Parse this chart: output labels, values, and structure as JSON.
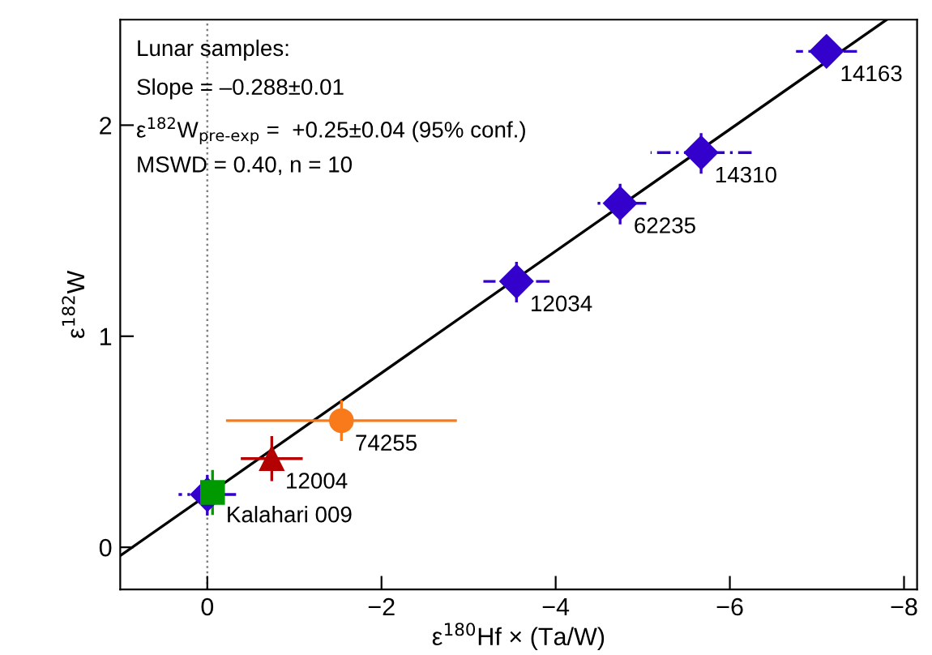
{
  "chart_data": {
    "type": "scatter",
    "xlabel": "ε$^{180}$Hf × (Ta/W)",
    "ylabel": "ε$^{182}$W",
    "xlim": [
      1,
      -8.15
    ],
    "ylim": [
      -0.2,
      2.5
    ],
    "xticks": [
      0,
      {
        "value": -2,
        "label": "−2"
      },
      {
        "value": -4,
        "label": "−4"
      },
      {
        "value": -6,
        "label": "−6"
      },
      {
        "value": -8,
        "label": "−8"
      }
    ],
    "yticks": [
      0,
      1,
      2
    ],
    "grid": false,
    "legend": false,
    "series": [
      {
        "type": "line",
        "color": "#000000",
        "x": [
          1,
          -7.8
        ],
        "values": [
          -0.04,
          2.5
        ],
        "marker": "none",
        "line_style": "solid"
      },
      {
        "color": "#3300cc",
        "marker": "diamond",
        "line_style": "dashed",
        "x": [
          0.0,
          -3.55,
          -4.74,
          -5.67,
          -7.11
        ],
        "values": [
          0.25,
          1.26,
          1.63,
          1.87,
          2.35
        ],
        "errors": [
          0.1,
          0.1,
          0.1,
          0.1,
          null
        ],
        "xerrors": [
          0.33,
          0.38,
          0.3,
          0.58,
          0.35
        ]
      },
      {
        "color": "#f97a1a",
        "marker": "circle",
        "line_style": "solid",
        "x": [
          -1.54
        ],
        "values": [
          0.6
        ],
        "errors": [
          0.09
        ],
        "xerrors": [
          1.31
        ]
      },
      {
        "color": "#b30000",
        "marker": "triangle",
        "line_style": "solid",
        "x": [
          -0.74
        ],
        "values": [
          0.42
        ],
        "errors": [
          0.1
        ],
        "xerrors": [
          0.34
        ]
      },
      {
        "color": "#009a00",
        "marker": "square",
        "line_style": "solid",
        "x": [
          -0.06
        ],
        "values": [
          0.26
        ],
        "errors": [
          0.1
        ],
        "xerrors": [
          null
        ]
      }
    ],
    "ref_lines": [
      {
        "axis": "x",
        "value": 0,
        "color": "#808080",
        "line_style": "dotted"
      }
    ],
    "annotations": [
      "Lunar samples:",
      "Slope = –0.288±0.01",
      "ε$^{182}$W$_{pre-exp}$ =  +0.25±0.04 (95% conf.)",
      "MSWD = 0.40, n = 10",
      {
        "text": "14163",
        "x": -7.11,
        "y": 2.35
      },
      {
        "text": "14310",
        "x": -5.67,
        "y": 1.87
      },
      {
        "text": "62235",
        "x": -4.74,
        "y": 1.63
      },
      {
        "text": "12034",
        "x": -3.55,
        "y": 1.26
      },
      {
        "text": "74255",
        "x": -1.54,
        "y": 0.6
      },
      {
        "text": "12004",
        "x": -0.74,
        "y": 0.42
      },
      {
        "text": "Kalahari 009",
        "x": -0.06,
        "y": 0.26
      }
    ]
  }
}
